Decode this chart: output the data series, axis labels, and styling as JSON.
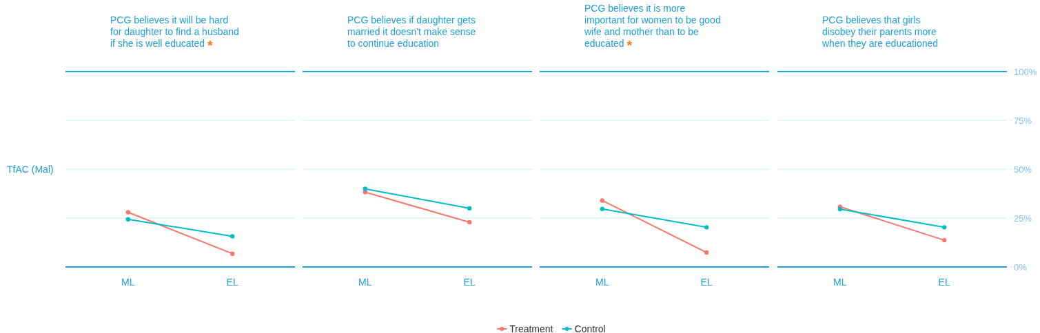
{
  "chart_data": [
    {
      "type": "line",
      "title": "PCG believes it will be hard for daughter to find a husband if she is well educated",
      "annotations": [
        "*"
      ],
      "ylabel": "TfAC (Mal)",
      "categories": [
        "ML",
        "EL"
      ],
      "series": [
        {
          "name": "Treatment",
          "color": "#f8766d",
          "values": [
            28,
            6.8
          ]
        },
        {
          "name": "Control",
          "color": "#00bfc4",
          "values": [
            24.4,
            15.7
          ]
        }
      ],
      "ylim": [
        0,
        100
      ],
      "yticks": [
        0,
        25,
        50,
        75,
        100
      ],
      "grid": "y",
      "marker": "circle",
      "tick_labels": "x",
      "legend": "bottom"
    },
    {
      "type": "line",
      "title": "PCG believes if daughter gets married it doesn't make sense to continue education",
      "categories": [
        "ML",
        "EL"
      ],
      "series": [
        {
          "color": "#f8766d",
          "values": [
            38.3,
            22.9
          ]
        },
        {
          "color": "#00bfc4",
          "values": [
            40,
            30
          ]
        }
      ],
      "ylim": [
        0,
        100
      ],
      "yticks": [
        0,
        25,
        50,
        75,
        100
      ],
      "grid": "y",
      "marker": "circle",
      "tick_labels": "x"
    },
    {
      "type": "line",
      "title": "PCG believes it is more important for women to be good wife and mother than to be educated",
      "annotations": [
        "*"
      ],
      "categories": [
        "ML",
        "EL"
      ],
      "series": [
        {
          "color": "#f8766d",
          "values": [
            34,
            7.4
          ]
        },
        {
          "color": "#00bfc4",
          "values": [
            29.7,
            20.3
          ]
        }
      ],
      "ylim": [
        0,
        100
      ],
      "yticks": [
        0,
        25,
        50,
        75,
        100
      ],
      "grid": "y",
      "marker": "circle",
      "tick_labels": "x"
    },
    {
      "type": "line",
      "title": "PCG believes that girls disobey their parents more when they are educationed",
      "categories": [
        "ML",
        "EL"
      ],
      "series": [
        {
          "color": "#f8766d",
          "values": [
            30.8,
            13.7
          ]
        },
        {
          "color": "#00bfc4",
          "values": [
            29.6,
            20.3
          ]
        }
      ],
      "ylim": [
        0,
        100
      ],
      "yticks": [
        {
          "value": 0,
          "label": "0%"
        },
        {
          "value": 25,
          "label": "25%"
        },
        {
          "value": 50,
          "label": "50%"
        },
        {
          "value": 75,
          "label": "75%"
        },
        {
          "value": 100,
          "label": "100%"
        }
      ],
      "grid": "y",
      "marker": "circle"
    }
  ]
}
